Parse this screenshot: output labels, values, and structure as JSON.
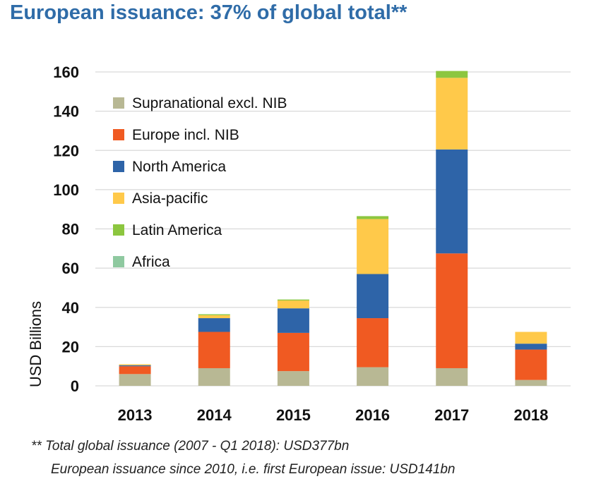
{
  "title": "European issuance: 37% of global total**",
  "footnotes": [
    "** Total global issuance (2007 - Q1 2018): USD377bn",
    "European issuance since 2010, i.e. first European issue: USD141bn"
  ],
  "chart_data": {
    "type": "bar",
    "stacked": true,
    "categories": [
      "2013",
      "2014",
      "2015",
      "2016",
      "2017",
      "2018"
    ],
    "ylabel": "USD Billions",
    "ylim": [
      0,
      160
    ],
    "yticks": [
      0,
      20,
      40,
      60,
      80,
      100,
      120,
      140,
      160
    ],
    "grid": true,
    "legend_position": "top-left",
    "series": [
      {
        "name": "Supranational excl. NIB",
        "color": "#b8b894",
        "values": [
          6,
          9,
          7.5,
          9.5,
          9,
          3
        ]
      },
      {
        "name": "Europe incl. NIB",
        "color": "#f05a22",
        "values": [
          4,
          18.5,
          19.5,
          25,
          58.5,
          15.5
        ]
      },
      {
        "name": "North America",
        "color": "#2e64a8",
        "values": [
          0.5,
          7,
          12.5,
          22.5,
          53,
          3
        ]
      },
      {
        "name": "Asia-pacific",
        "color": "#ffc94a",
        "values": [
          0.5,
          1.5,
          4,
          28,
          36.5,
          6
        ]
      },
      {
        "name": "Latin America",
        "color": "#8cc63f",
        "values": [
          0,
          0.5,
          0.5,
          1.5,
          3.5,
          0
        ]
      },
      {
        "name": "Africa",
        "color": "#8fc9a0",
        "values": [
          0,
          0,
          0,
          0,
          0,
          0
        ]
      }
    ]
  }
}
